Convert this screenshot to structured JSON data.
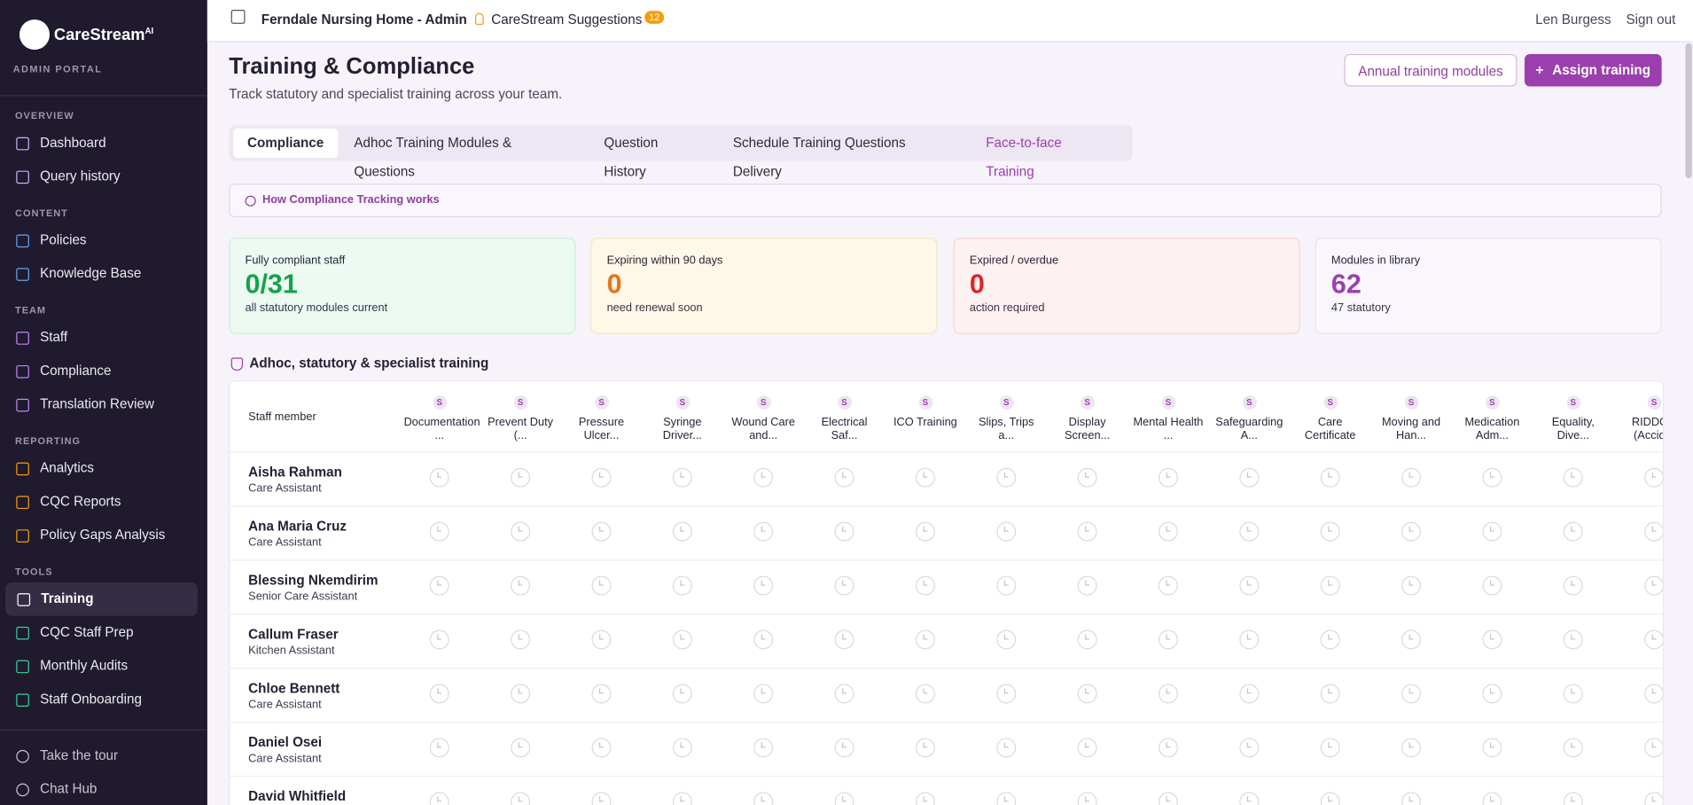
{
  "sidebar": {
    "brand": "CareStream",
    "brand_suffix": "AI",
    "portal": "ADMIN PORTAL",
    "sections": [
      {
        "title": "OVERVIEW",
        "items": [
          "Dashboard",
          "Query history"
        ]
      },
      {
        "title": "CONTENT",
        "items": [
          "Policies",
          "Knowledge Base"
        ]
      },
      {
        "title": "TEAM",
        "items": [
          "Staff",
          "Compliance",
          "Translation Review"
        ]
      },
      {
        "title": "REPORTING",
        "items": [
          "Analytics",
          "CQC Reports",
          "Policy Gaps Analysis"
        ]
      },
      {
        "title": "TOOLS",
        "items": [
          "Training",
          "CQC Staff Prep",
          "Monthly Audits",
          "Staff Onboarding"
        ]
      }
    ],
    "footer": [
      "Take the tour",
      "Chat Hub"
    ]
  },
  "topbar": {
    "org": "Ferndale Nursing Home - Admin",
    "suggestions": "CareStream Suggestions",
    "badge": "12",
    "user": "Len Burgess",
    "signout": "Sign out"
  },
  "header": {
    "title": "Training & Compliance",
    "subtitle": "Track statutory and specialist training across your team.",
    "buttons": [
      "Annual training modules",
      "Assign training"
    ]
  },
  "tabs": [
    "Compliance",
    "Adhoc Training Modules & Questions",
    "Question History",
    "Schedule Training Questions Delivery",
    "Face-to-face Training"
  ],
  "info": "How Compliance Tracking works",
  "stats": [
    {
      "label": "Fully compliant staff",
      "value": "0/31",
      "note": "all statutory modules current"
    },
    {
      "label": "Expiring within 90 days",
      "value": "0",
      "note": "need renewal soon"
    },
    {
      "label": "Expired / overdue",
      "value": "0",
      "note": "action required"
    },
    {
      "label": "Modules in library",
      "value": "62",
      "note": "47 statutory"
    }
  ],
  "section_title": "Adhoc, statutory & specialist training",
  "table": {
    "staff_header": "Staff member",
    "columns": [
      {
        "badge": "S",
        "label": "Documentation ..."
      },
      {
        "badge": "S",
        "label": "Prevent Duty (..."
      },
      {
        "badge": "S",
        "label": "Pressure Ulcer..."
      },
      {
        "badge": "S",
        "label": "Syringe Driver..."
      },
      {
        "badge": "S",
        "label": "Wound Care and..."
      },
      {
        "badge": "S",
        "label": "Electrical Saf..."
      },
      {
        "badge": "S",
        "label": "ICO Training"
      },
      {
        "badge": "S",
        "label": "Slips, Trips a..."
      },
      {
        "badge": "S",
        "label": "Display Screen..."
      },
      {
        "badge": "S",
        "label": "Mental Health ..."
      },
      {
        "badge": "S",
        "label": "Safeguarding A..."
      },
      {
        "badge": "S",
        "label": "Care Certificate"
      },
      {
        "badge": "S",
        "label": "Moving and Han..."
      },
      {
        "badge": "S",
        "label": "Medication Adm..."
      },
      {
        "badge": "S",
        "label": "Equality, Dive..."
      },
      {
        "badge": "S",
        "label": "RIDDOR (Accid..."
      }
    ],
    "rows": [
      {
        "name": "Aisha Rahman",
        "role": "Care Assistant"
      },
      {
        "name": "Ana Maria Cruz",
        "role": "Care Assistant"
      },
      {
        "name": "Blessing Nkemdirim",
        "role": "Senior Care Assistant"
      },
      {
        "name": "Callum Fraser",
        "role": "Kitchen Assistant"
      },
      {
        "name": "Chloe Bennett",
        "role": "Care Assistant"
      },
      {
        "name": "Daniel Osei",
        "role": "Care Assistant"
      },
      {
        "name": "David Whitfield"
      }
    ]
  }
}
